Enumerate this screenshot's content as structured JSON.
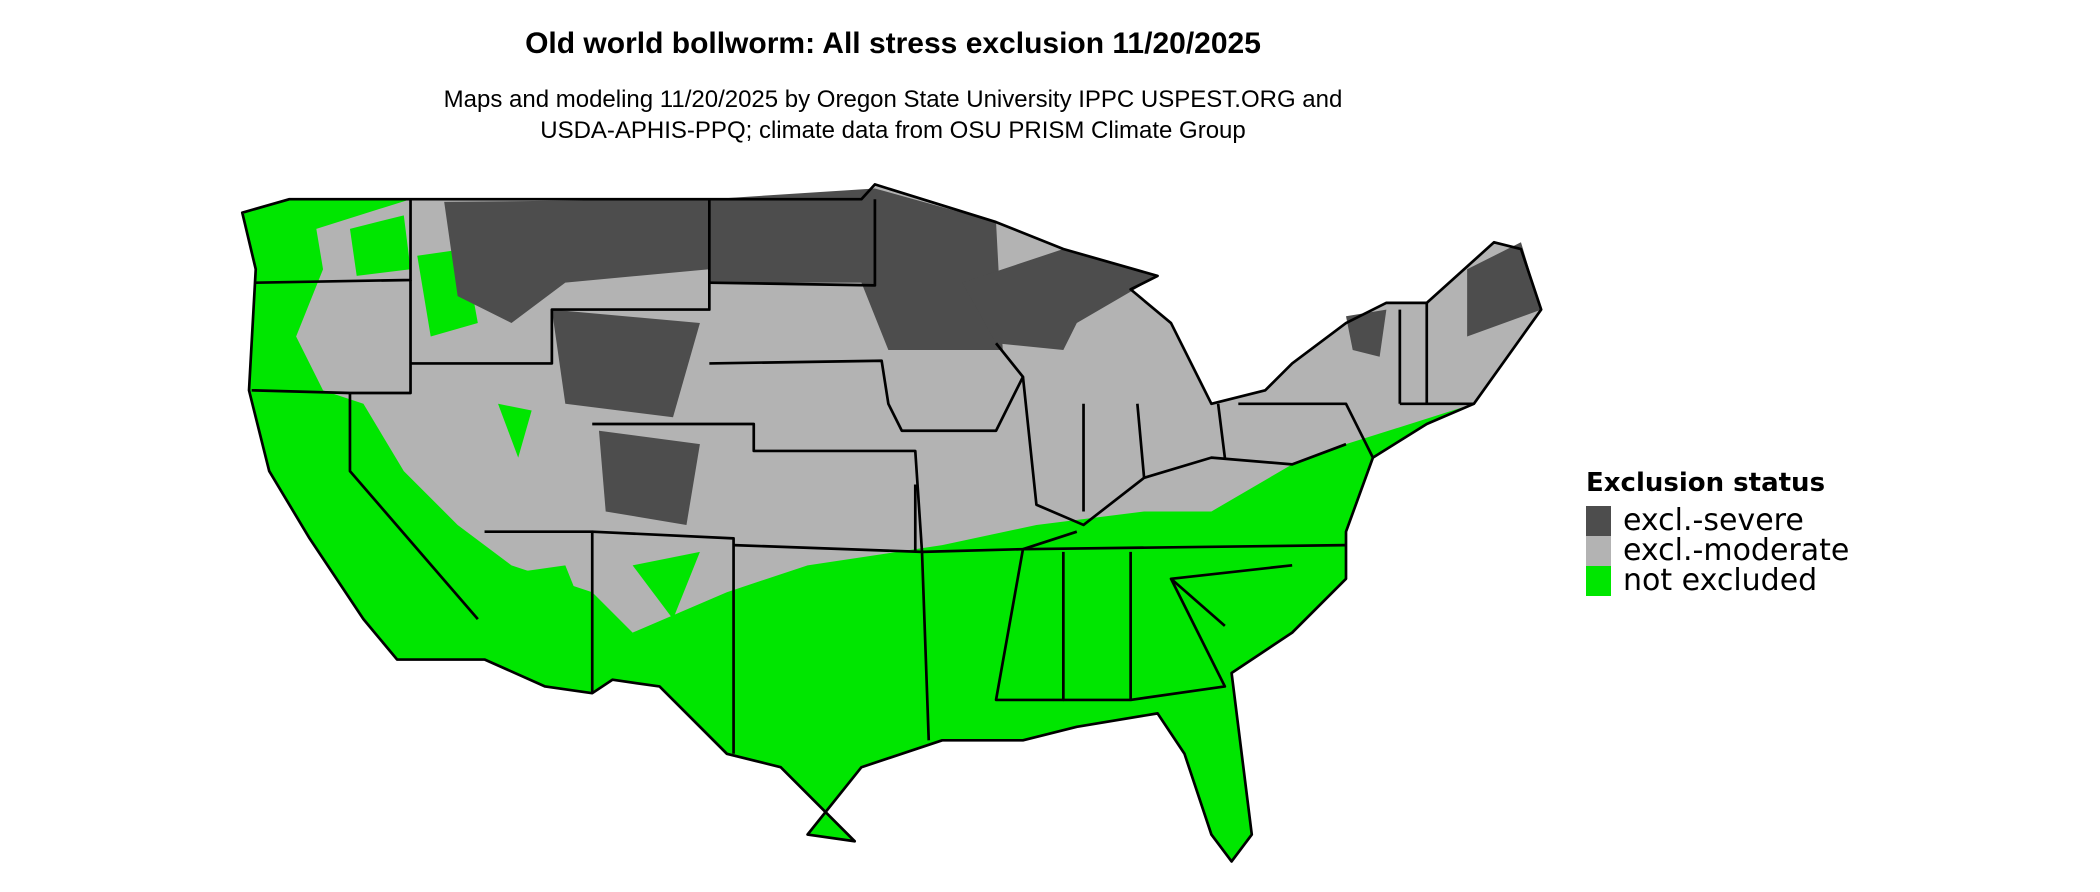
{
  "title": "Old world bollworm: All stress exclusion 11/20/2025",
  "subtitle_line1": "Maps and modeling 11/20/2025 by Oregon State University IPPC USPEST.ORG and",
  "subtitle_line2": "USDA-APHIS-PPQ; climate data from OSU PRISM Climate Group",
  "legend": {
    "title": "Exclusion status",
    "items": [
      {
        "label": "excl.-severe",
        "color": "#4d4d4d"
      },
      {
        "label": "excl.-moderate",
        "color": "#b3b3b3"
      },
      {
        "label": "not excluded",
        "color": "#00e600"
      }
    ]
  },
  "map": {
    "region": "Contiguous United States",
    "border_color": "#000000"
  }
}
